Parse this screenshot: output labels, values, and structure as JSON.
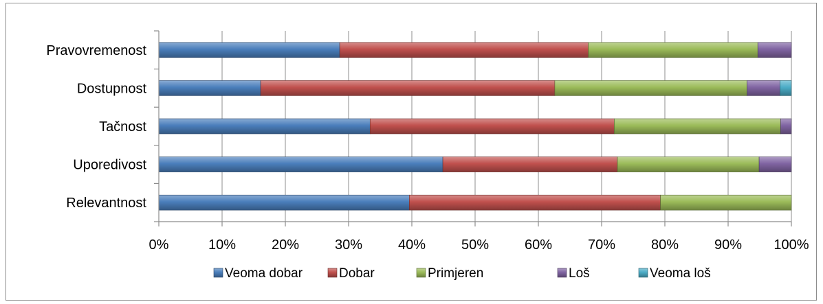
{
  "chart_data": {
    "type": "bar",
    "orientation": "horizontal",
    "stacked": "percent",
    "categories": [
      "Pravovremenost",
      "Dostupnost",
      "Tačnost",
      "Uporedivost",
      "Relevantnost"
    ],
    "series": [
      {
        "name": "Veoma dobar",
        "color": "#4a7ebb",
        "values": [
          28.6,
          16.1,
          33.4,
          44.9,
          39.6
        ]
      },
      {
        "name": "Dobar",
        "color": "#c0504d",
        "values": [
          39.3,
          46.5,
          38.6,
          27.6,
          39.7
        ]
      },
      {
        "name": "Primjeren",
        "color": "#9bbb59",
        "values": [
          26.8,
          30.4,
          26.3,
          22.4,
          20.7
        ]
      },
      {
        "name": "Loš",
        "color": "#8064a2",
        "values": [
          5.3,
          5.2,
          1.7,
          5.1,
          0
        ]
      },
      {
        "name": "Veoma loš",
        "color": "#4bacc6",
        "values": [
          0,
          1.8,
          0,
          0,
          0
        ]
      }
    ],
    "xticks": [
      "0%",
      "10%",
      "20%",
      "30%",
      "40%",
      "50%",
      "60%",
      "70%",
      "80%",
      "90%",
      "100%"
    ],
    "xlim": [
      0,
      100
    ],
    "grid": true,
    "legend": "bottom"
  }
}
